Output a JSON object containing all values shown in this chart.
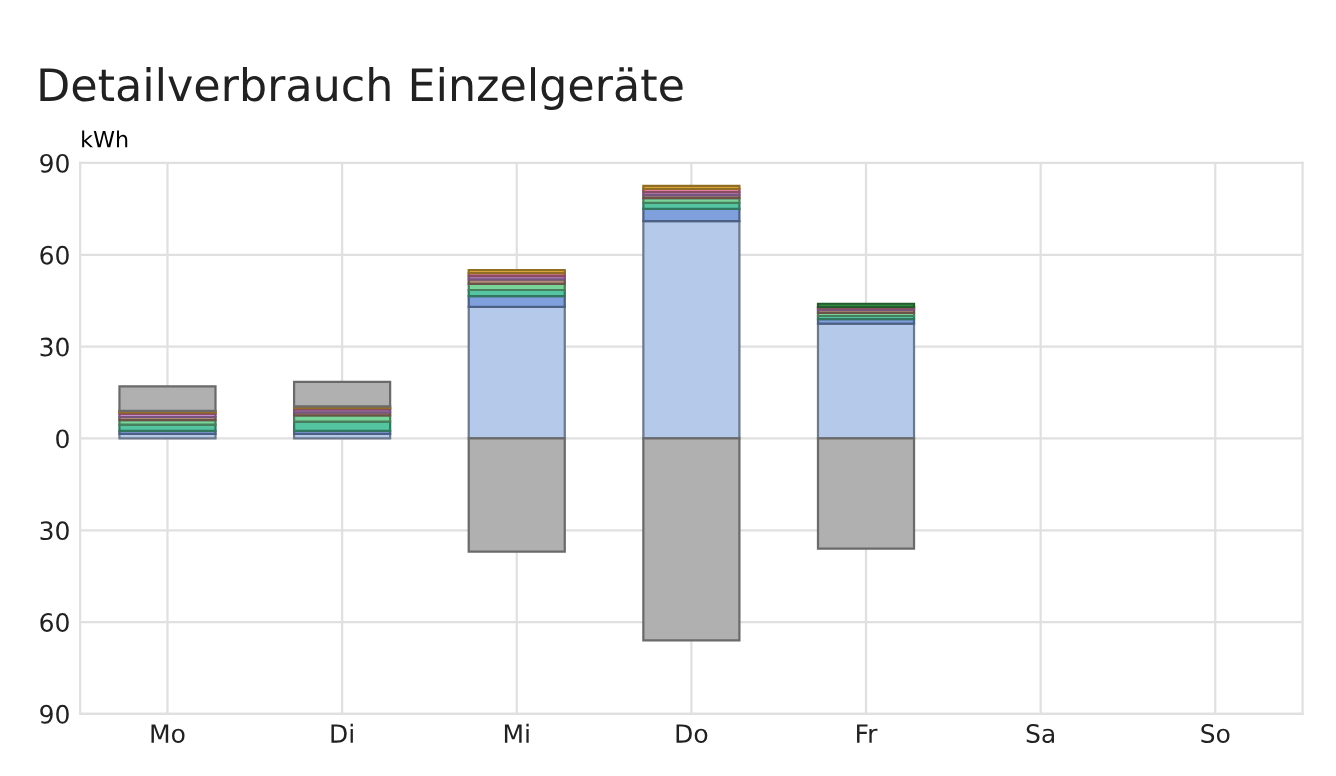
{
  "chart_data": {
    "type": "bar",
    "title": "Detailverbrauch Einzelgeräte",
    "ylabel": "kWh",
    "stacked": true,
    "categories": [
      "Mo",
      "Di",
      "Mi",
      "Do",
      "Fr",
      "Sa",
      "So"
    ],
    "series": [
      {
        "color": "#b5c9ea",
        "values": [
          1.5,
          1.5,
          43,
          71,
          37.5,
          null,
          null
        ]
      },
      {
        "color": "#7fa0dc",
        "values": [
          1,
          1,
          3.5,
          4,
          1.5,
          null,
          null
        ]
      },
      {
        "color": "#55c4a0",
        "values": [
          2,
          3,
          2,
          2,
          1,
          null,
          null
        ]
      },
      {
        "color": "#79d49a",
        "values": [
          1.5,
          2,
          2,
          1.5,
          1,
          null,
          null
        ]
      },
      {
        "color": "#b08a78",
        "values": [
          1,
          1,
          1.5,
          1,
          1,
          null,
          null
        ]
      },
      {
        "color": "#c48ed3",
        "values": [
          1,
          1,
          1,
          1,
          0.5,
          null,
          null
        ]
      },
      {
        "color": "#e57fa0",
        "values": [
          0.5,
          0.5,
          1,
          1,
          0.5,
          null,
          null
        ]
      },
      {
        "color": "#f0b840",
        "values": [
          0.5,
          0.5,
          1,
          1,
          null,
          null,
          null
        ]
      },
      {
        "color": "#3a9a4a",
        "values": [
          null,
          null,
          null,
          null,
          1,
          null,
          null
        ]
      },
      {
        "color": "#b0b0b0",
        "values": [
          8,
          8,
          -37,
          -66,
          -36,
          null,
          null
        ]
      }
    ],
    "ylim": [
      -90,
      90
    ],
    "yticks": [
      {
        "value": -90,
        "label": "90"
      },
      {
        "value": -60,
        "label": "60"
      },
      {
        "value": -30,
        "label": "30"
      },
      0,
      30,
      60,
      90
    ],
    "grid": true
  }
}
